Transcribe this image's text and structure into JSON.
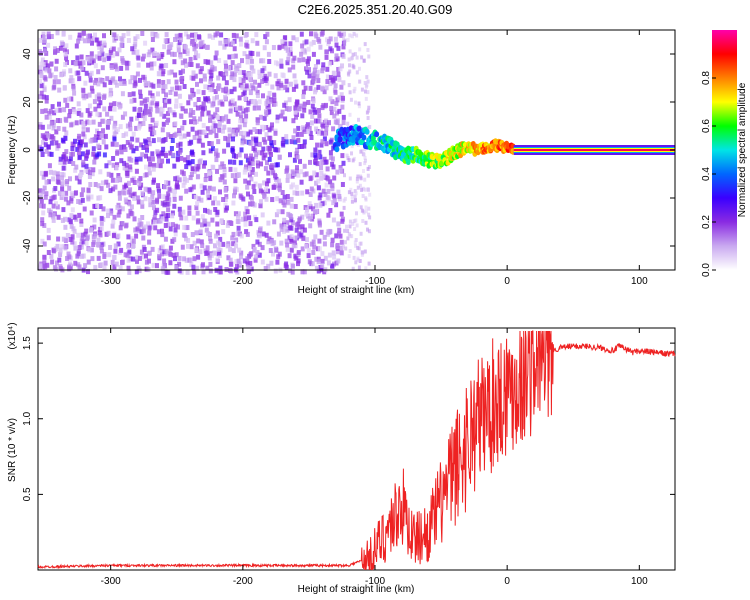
{
  "title": "C2E6.2025.351.20.40.G09",
  "chart_data": [
    {
      "type": "heatmap",
      "title": "C2E6.2025.351.20.40.G09",
      "xlabel": "Height of straight line (km)",
      "ylabel": "Frequency (Hz)",
      "xlim": [
        -355,
        127
      ],
      "ylim": [
        -50,
        50
      ],
      "xticks": [
        -300,
        -200,
        -100,
        0,
        100
      ],
      "yticks": [
        -40,
        -20,
        0,
        20,
        40
      ],
      "xtick_labels": [
        "-300",
        "-200",
        "-100",
        "0",
        "100"
      ],
      "ytick_labels": [
        "-40",
        "-20",
        "0",
        "20",
        "40"
      ],
      "colorbar": {
        "label": "Normalized spectral amplitude",
        "range": [
          0,
          1
        ],
        "ticks": [
          0.0,
          0.2,
          0.4,
          0.6,
          0.8
        ],
        "tick_labels": [
          "0.0",
          "0.2",
          "0.4",
          "0.6",
          "0.8"
        ],
        "colors": [
          "#ffffff",
          "#c9a9f0",
          "#8a2be2",
          "#3a00ff",
          "#0066ff",
          "#00e5e5",
          "#00ff00",
          "#ffff00",
          "#ff8000",
          "#ff0000",
          "#ff00aa"
        ]
      },
      "noise_region_x": [
        -355,
        -125
      ],
      "transition_region_x": [
        -125,
        5
      ],
      "clean_tone_region_x": [
        5,
        127
      ],
      "signal_track": {
        "x": [
          -130,
          -115,
          -100,
          -90,
          -80,
          -70,
          -60,
          -50,
          -45,
          -40,
          -35,
          -30,
          -20,
          -10,
          0,
          5,
          127
        ],
        "y": [
          4,
          6,
          4,
          2,
          -2,
          -2,
          -4,
          -5,
          -3,
          -1,
          0,
          1,
          0,
          2,
          1,
          0,
          0
        ]
      }
    },
    {
      "type": "line",
      "xlabel": "Height of straight line (km)",
      "ylabel": "SNR (10 * v/v)",
      "y_scale_label": "(x10⁴)",
      "xlim": [
        -355,
        127
      ],
      "ylim": [
        0,
        1.6
      ],
      "xticks": [
        -300,
        -200,
        -100,
        0,
        100
      ],
      "yticks": [
        0.5,
        1.0,
        1.5
      ],
      "xtick_labels": [
        "-300",
        "-200",
        "-100",
        "0",
        "100"
      ],
      "ytick_labels": [
        "0.5",
        "1.0",
        "1.5"
      ],
      "series": [
        {
          "name": "SNR",
          "color": "#ee2222",
          "x": [
            -355,
            -300,
            -250,
            -200,
            -150,
            -120,
            -105,
            -95,
            -85,
            -80,
            -75,
            -70,
            -60,
            -55,
            -50,
            -45,
            -40,
            -35,
            -30,
            -25,
            -20,
            -15,
            -10,
            -5,
            0,
            5,
            10,
            15,
            20,
            25,
            30,
            35,
            40,
            50,
            60,
            70,
            80,
            85,
            90,
            95,
            100,
            110,
            120,
            127
          ],
          "y": [
            0.02,
            0.03,
            0.03,
            0.03,
            0.03,
            0.03,
            0.08,
            0.2,
            0.35,
            0.45,
            0.3,
            0.2,
            0.25,
            0.35,
            0.45,
            0.55,
            0.65,
            0.75,
            0.85,
            0.95,
            1.0,
            1.05,
            1.1,
            1.15,
            1.2,
            1.22,
            1.25,
            1.3,
            1.35,
            1.4,
            1.42,
            1.45,
            1.47,
            1.48,
            1.48,
            1.47,
            1.45,
            1.48,
            1.46,
            1.44,
            1.45,
            1.44,
            1.43,
            1.43
          ]
        }
      ]
    }
  ]
}
